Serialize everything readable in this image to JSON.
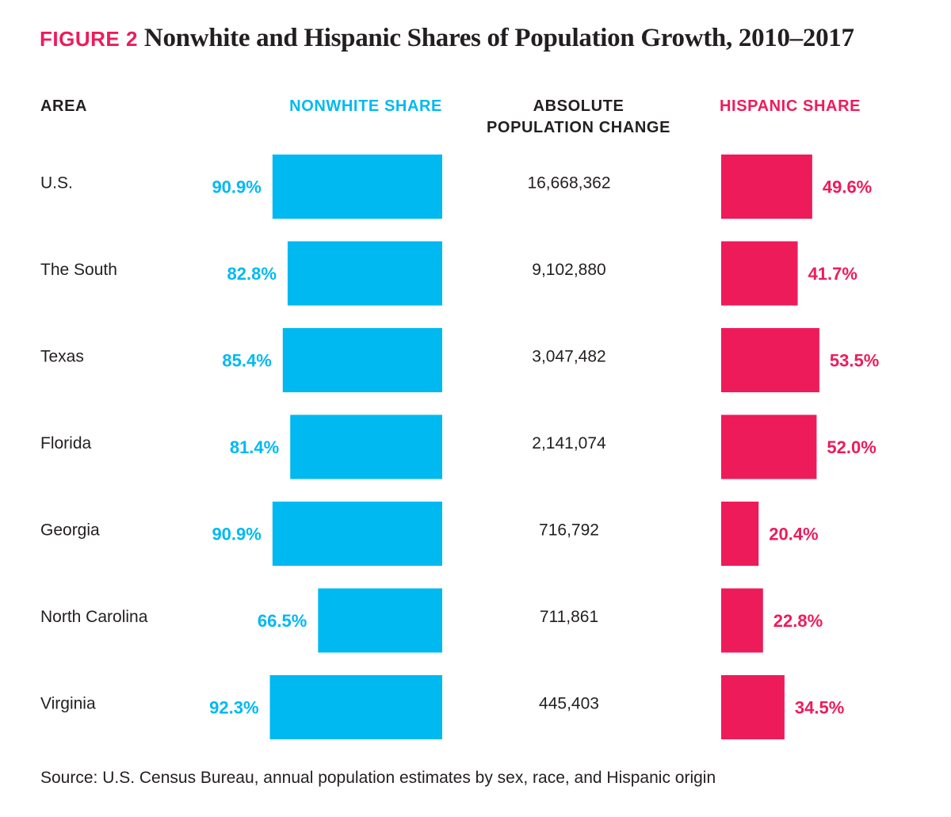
{
  "header": {
    "figure_label": "FIGURE 2",
    "title": "Nonwhite and Hispanic Shares of Population Growth, 2010–2017"
  },
  "columns": {
    "area": "AREA",
    "nonwhite": "NONWHITE SHARE",
    "absolute": [
      "ABSOLUTE",
      "POPULATION CHANGE"
    ],
    "hispanic": "HISPANIC SHARE"
  },
  "chart_data": {
    "type": "bar",
    "title": "Nonwhite and Hispanic Shares of Population Growth, 2010–2017",
    "categories": [
      "U.S.",
      "The South",
      "Texas",
      "Florida",
      "Georgia",
      "North Carolina",
      "Virginia"
    ],
    "series": [
      {
        "name": "NONWHITE SHARE",
        "values": [
          90.9,
          82.8,
          85.4,
          81.4,
          90.9,
          66.5,
          92.3
        ],
        "labels": [
          "90.9%",
          "82.8%",
          "85.4%",
          "81.4%",
          "90.9%",
          "66.5%",
          "92.3%"
        ],
        "color": "#00b9f1"
      },
      {
        "name": "HISPANIC SHARE",
        "values": [
          49.6,
          41.7,
          53.5,
          52.0,
          20.4,
          22.8,
          34.5
        ],
        "labels": [
          "49.6%",
          "41.7%",
          "53.5%",
          "52.0%",
          "20.4%",
          "22.8%",
          "34.5%"
        ],
        "color": "#ee1b5a"
      }
    ],
    "absolute_population_change": [
      "16,668,362",
      "9,102,880",
      "3,047,482",
      "2,141,074",
      "716,792",
      "711,861",
      "445,403"
    ],
    "nonwhite_axis_max": 100,
    "hispanic_axis_max": 100
  },
  "footer": {
    "source": "Source: U.S. Census Bureau, annual population estimates by sex, race, and Hispanic origin"
  }
}
